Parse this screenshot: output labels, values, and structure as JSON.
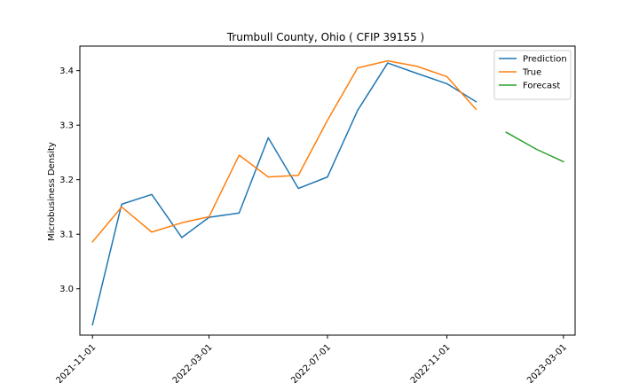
{
  "chart_data": {
    "type": "line",
    "title": "Trumbull County, Ohio ( CFIP 39155 )",
    "xlabel": "",
    "ylabel": "Microbusiness Density",
    "ylim": [
      2.915,
      3.445
    ],
    "x_range": [
      "2021-10-19",
      "2023-03-13"
    ],
    "x_ticks": [
      "2021-11-01",
      "2022-03-01",
      "2022-07-01",
      "2022-11-01",
      "2023-03-01"
    ],
    "y_ticks": [
      3.0,
      3.1,
      3.2,
      3.3,
      3.4
    ],
    "y_tick_labels": [
      "3.0",
      "3.1",
      "3.2",
      "3.3",
      "3.4"
    ],
    "legend_position": "top-right",
    "grid": false,
    "series": [
      {
        "name": "Prediction",
        "color": "#1f77b4",
        "x": [
          "2021-11-01",
          "2021-12-01",
          "2022-01-01",
          "2022-02-01",
          "2022-03-01",
          "2022-04-01",
          "2022-05-01",
          "2022-06-01",
          "2022-07-01",
          "2022-08-01",
          "2022-09-01",
          "2022-10-01",
          "2022-11-01",
          "2022-12-01"
        ],
        "values": [
          2.934,
          3.155,
          3.173,
          3.094,
          3.131,
          3.139,
          3.277,
          3.184,
          3.205,
          3.327,
          3.414,
          3.395,
          3.376,
          3.343
        ]
      },
      {
        "name": "True",
        "color": "#ff7f0e",
        "x": [
          "2021-11-01",
          "2021-12-01",
          "2022-01-01",
          "2022-02-01",
          "2022-03-01",
          "2022-04-01",
          "2022-05-01",
          "2022-06-01",
          "2022-07-01",
          "2022-08-01",
          "2022-09-01",
          "2022-10-01",
          "2022-11-01",
          "2022-12-01"
        ],
        "values": [
          3.086,
          3.15,
          3.104,
          3.121,
          3.132,
          3.245,
          3.205,
          3.208,
          3.309,
          3.405,
          3.418,
          3.408,
          3.389,
          3.329
        ]
      },
      {
        "name": "Forecast",
        "color": "#2ca02c",
        "x": [
          "2023-01-01",
          "2023-02-01",
          "2023-03-01"
        ],
        "values": [
          3.287,
          3.256,
          3.233
        ]
      }
    ]
  }
}
